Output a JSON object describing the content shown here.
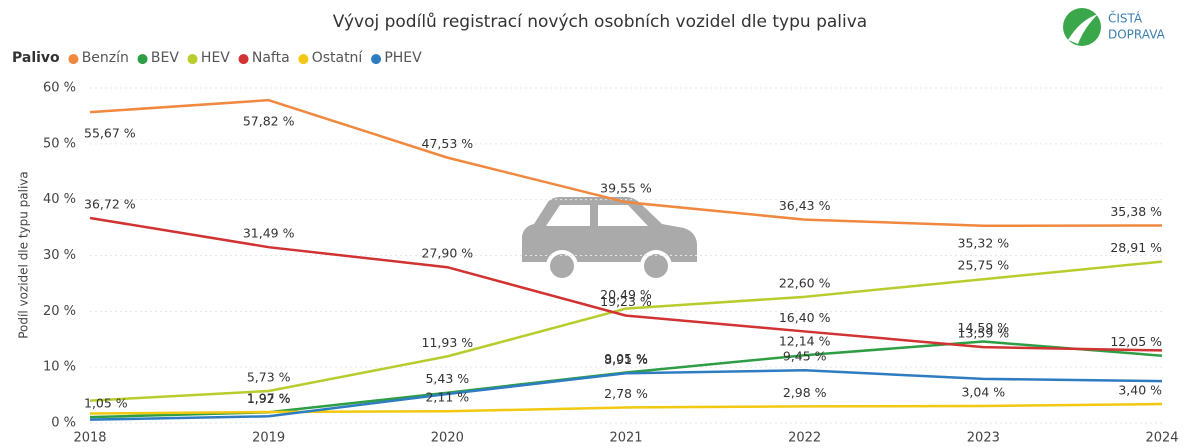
{
  "chart_data": {
    "type": "line",
    "title": "Vývoj podílů registrací nových osobních vozidel dle typu paliva",
    "y_label": "Podíl vozidel dle typu paliva",
    "legend_title": "Palivo",
    "logo": [
      "ČISTÁ",
      "DOPRAVA"
    ],
    "categories": [
      "2018",
      "2019",
      "2020",
      "2021",
      "2022",
      "2023",
      "2024"
    ],
    "ylim": [
      0,
      60
    ],
    "yticks": [
      {
        "value": 0,
        "label": "0 %"
      },
      {
        "value": 10,
        "label": "10 %"
      },
      {
        "value": 20,
        "label": "20 %"
      },
      {
        "value": 30,
        "label": "30 %"
      },
      {
        "value": 40,
        "label": "40 %"
      },
      {
        "value": 50,
        "label": "50 %"
      },
      {
        "value": 60,
        "label": "60 %"
      }
    ],
    "grid": true,
    "series": [
      {
        "name": "Benzín",
        "color": "#f0883f",
        "values": [
          55.67,
          57.82,
          47.53,
          39.55,
          36.43,
          35.32,
          35.38
        ],
        "value_labels": [
          "55,67 %",
          "57,82 %",
          "47,53 %",
          "39,55 %",
          "36,43 %",
          "35,32 %",
          "35,38 %"
        ]
      },
      {
        "name": "BEV",
        "color": "#2e9e44",
        "values": [
          1.05,
          1.92,
          5.43,
          9.05,
          12.14,
          14.59,
          12.05
        ],
        "value_labels": [
          "1,05 %",
          "1,92 %",
          "5,43 %",
          "9,05 %",
          "12,14 %",
          "14,59 %",
          "12,05 %"
        ]
      },
      {
        "name": "HEV",
        "color": "#b8cc2e",
        "values": [
          4,
          5.73,
          11.93,
          20.49,
          22.6,
          25.75,
          28.91
        ],
        "value_labels": [
          null,
          "5,73 %",
          "11,93 %",
          "20,49 %",
          "22,60 %",
          "25,75 %",
          "28,91 %"
        ]
      },
      {
        "name": "Nafta",
        "color": "#d13232",
        "values": [
          36.72,
          31.49,
          27.9,
          19.23,
          16.4,
          13.59,
          13
        ],
        "value_labels": [
          "36,72 %",
          "31,49 %",
          "27,90 %",
          "19,23 %",
          "16,40 %",
          "13,59 %",
          null
        ]
      },
      {
        "name": "Ostatní",
        "color": "#f2c811",
        "values": [
          1.7,
          1.97,
          2.11,
          2.78,
          2.98,
          3.04,
          3.4
        ],
        "value_labels": [
          null,
          "1,97 %",
          "2,11 %",
          "2,78 %",
          "2,98 %",
          "3,04 %",
          "3,40 %"
        ]
      },
      {
        "name": "PHEV",
        "color": "#2f7dc1",
        "values": [
          0.6,
          1.2,
          5.2,
          8.91,
          9.45,
          7.9,
          7.5
        ],
        "value_labels": [
          null,
          null,
          null,
          "8,91 %",
          "9,45 %",
          null,
          null
        ]
      }
    ]
  }
}
